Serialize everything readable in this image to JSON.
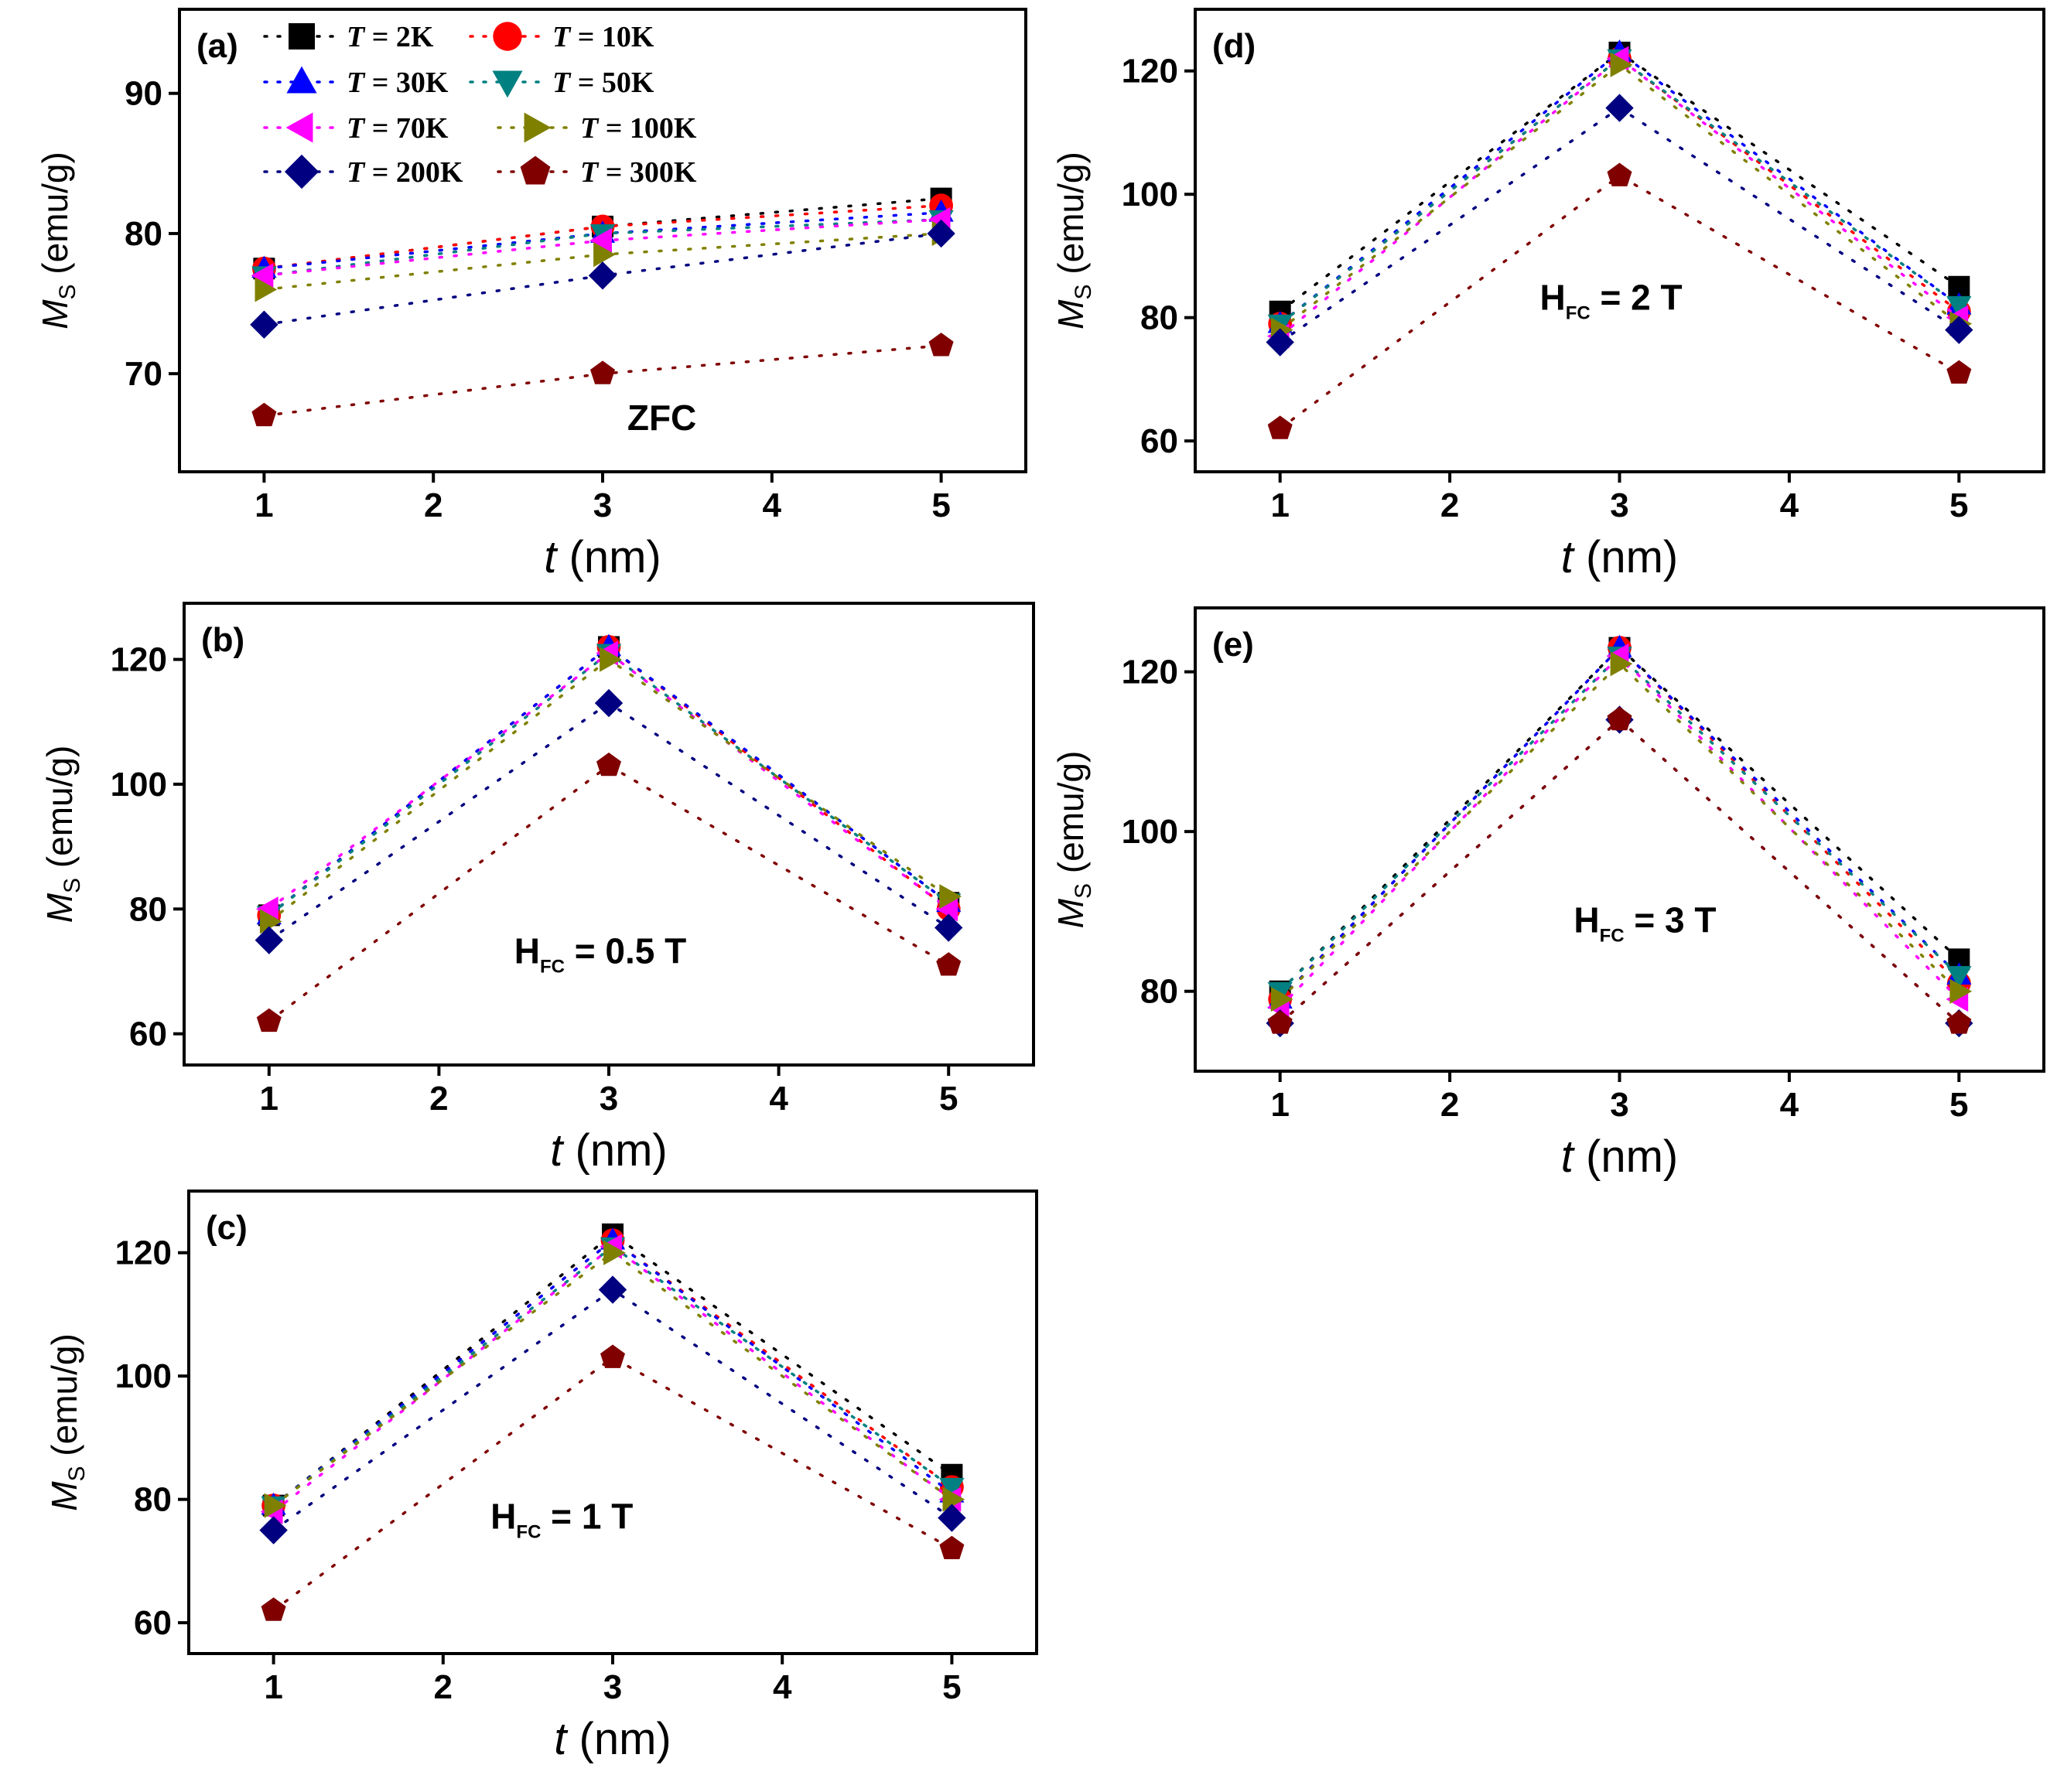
{
  "legend": [
    {
      "label_prefix": "T",
      "label_suffix": " = 2K",
      "marker": "square",
      "color": "#000000"
    },
    {
      "label_prefix": "T",
      "label_suffix": " = 10K",
      "marker": "circle",
      "color": "#ff0000"
    },
    {
      "label_prefix": "T",
      "label_suffix": " = 30K",
      "marker": "triangle-up",
      "color": "#0000ff"
    },
    {
      "label_prefix": "T",
      "label_suffix": " = 50K",
      "marker": "triangle-down",
      "color": "#008080"
    },
    {
      "label_prefix": "T",
      "label_suffix": " = 70K",
      "marker": "triangle-left",
      "color": "#ff00ff"
    },
    {
      "label_prefix": "T",
      "label_suffix": " = 100K",
      "marker": "triangle-right",
      "color": "#808000"
    },
    {
      "label_prefix": "T",
      "label_suffix": " = 200K",
      "marker": "diamond",
      "color": "#000080"
    },
    {
      "label_prefix": "T",
      "label_suffix": " = 300K",
      "marker": "pentagon",
      "color": "#800000"
    }
  ],
  "chart_data": [
    {
      "panel": "(a)",
      "type": "scatter",
      "annotation": {
        "main": "ZFC",
        "sub": "",
        "tail": ""
      },
      "xlabel": {
        "italic": "t",
        "rest": " (nm)"
      },
      "ylabel": {
        "italic": "M",
        "sub": "S",
        "rest": " (emu/g)"
      },
      "xlim": [
        0.5,
        5.5
      ],
      "ylim": [
        63,
        96
      ],
      "xticks": [
        1,
        2,
        3,
        4,
        5
      ],
      "yticks": [
        70,
        80,
        90
      ],
      "x": [
        1,
        3,
        5
      ],
      "series": [
        {
          "name": "T = 2K",
          "values": [
            77.5,
            80.5,
            82.5
          ]
        },
        {
          "name": "T = 10K",
          "values": [
            77.5,
            80.5,
            82
          ]
        },
        {
          "name": "T = 30K",
          "values": [
            77.5,
            80,
            81.5
          ]
        },
        {
          "name": "T = 50K",
          "values": [
            77,
            80,
            81
          ]
        },
        {
          "name": "T = 70K",
          "values": [
            77,
            79.5,
            81
          ]
        },
        {
          "name": "T = 100K",
          "values": [
            76,
            78.5,
            80
          ]
        },
        {
          "name": "T = 200K",
          "values": [
            73.5,
            77,
            80
          ]
        },
        {
          "name": "T = 300K",
          "values": [
            67,
            70,
            72
          ]
        }
      ]
    },
    {
      "panel": "(b)",
      "type": "scatter",
      "annotation": {
        "main": "H",
        "sub": "FC",
        "tail": " = 0.5 T"
      },
      "xlabel": {
        "italic": "t",
        "rest": " (nm)"
      },
      "ylabel": {
        "italic": "M",
        "sub": "S",
        "rest": " (emu/g)"
      },
      "xlim": [
        0.5,
        5.5
      ],
      "ylim": [
        55,
        129
      ],
      "xticks": [
        1,
        2,
        3,
        4,
        5
      ],
      "yticks": [
        60,
        80,
        100,
        120
      ],
      "x": [
        1,
        3,
        5
      ],
      "series": [
        {
          "name": "T = 2K",
          "values": [
            79,
            122,
            81
          ]
        },
        {
          "name": "T = 10K",
          "values": [
            79,
            122,
            80
          ]
        },
        {
          "name": "T = 30K",
          "values": [
            79,
            122,
            81
          ]
        },
        {
          "name": "T = 50K",
          "values": [
            79,
            121,
            81
          ]
        },
        {
          "name": "T = 70K",
          "values": [
            80,
            121,
            80
          ]
        },
        {
          "name": "T = 100K",
          "values": [
            78,
            120,
            82
          ]
        },
        {
          "name": "T = 200K",
          "values": [
            75,
            113,
            77
          ]
        },
        {
          "name": "T = 300K",
          "values": [
            62,
            103,
            71
          ]
        }
      ]
    },
    {
      "panel": "(c)",
      "type": "scatter",
      "annotation": {
        "main": "H",
        "sub": "FC",
        "tail": " = 1 T"
      },
      "xlabel": {
        "italic": "t",
        "rest": " (nm)"
      },
      "ylabel": {
        "italic": "M",
        "sub": "S",
        "rest": " (emu/g)"
      },
      "xlim": [
        0.5,
        5.5
      ],
      "ylim": [
        55,
        130
      ],
      "xticks": [
        1,
        2,
        3,
        4,
        5
      ],
      "yticks": [
        60,
        80,
        100,
        120
      ],
      "x": [
        1,
        3,
        5
      ],
      "series": [
        {
          "name": "T = 2K",
          "values": [
            79,
            123,
            84
          ]
        },
        {
          "name": "T = 10K",
          "values": [
            79,
            122,
            82
          ]
        },
        {
          "name": "T = 30K",
          "values": [
            79,
            122,
            81
          ]
        },
        {
          "name": "T = 50K",
          "values": [
            79,
            121,
            82
          ]
        },
        {
          "name": "T = 70K",
          "values": [
            78,
            121,
            80
          ]
        },
        {
          "name": "T = 100K",
          "values": [
            79,
            120,
            80
          ]
        },
        {
          "name": "T = 200K",
          "values": [
            75,
            114,
            77
          ]
        },
        {
          "name": "T = 300K",
          "values": [
            62,
            103,
            72
          ]
        }
      ]
    },
    {
      "panel": "(d)",
      "type": "scatter",
      "annotation": {
        "main": "H",
        "sub": "FC",
        "tail": " = 2 T"
      },
      "xlabel": {
        "italic": "t",
        "rest": " (nm)"
      },
      "ylabel": {
        "italic": "M",
        "sub": "S",
        "rest": " (emu/g)"
      },
      "xlim": [
        0.5,
        5.5
      ],
      "ylim": [
        55,
        130
      ],
      "xticks": [
        1,
        2,
        3,
        4,
        5
      ],
      "yticks": [
        60,
        80,
        100,
        120
      ],
      "x": [
        1,
        3,
        5
      ],
      "series": [
        {
          "name": "T = 2K",
          "values": [
            81,
            123,
            85
          ]
        },
        {
          "name": "T = 10K",
          "values": [
            79,
            122,
            81
          ]
        },
        {
          "name": "T = 30K",
          "values": [
            79,
            123,
            82
          ]
        },
        {
          "name": "T = 50K",
          "values": [
            79,
            122,
            82
          ]
        },
        {
          "name": "T = 70K",
          "values": [
            77,
            122,
            80
          ]
        },
        {
          "name": "T = 100K",
          "values": [
            78,
            121,
            79
          ]
        },
        {
          "name": "T = 200K",
          "values": [
            76,
            114,
            78
          ]
        },
        {
          "name": "T = 300K",
          "values": [
            62,
            103,
            71
          ]
        }
      ]
    },
    {
      "panel": "(e)",
      "type": "scatter",
      "annotation": {
        "main": "H",
        "sub": "FC",
        "tail": " = 3 T"
      },
      "xlabel": {
        "italic": "t",
        "rest": " (nm)"
      },
      "ylabel": {
        "italic": "M",
        "sub": "S",
        "rest": " (emu/g)"
      },
      "xlim": [
        0.5,
        5.5
      ],
      "ylim": [
        70,
        128
      ],
      "xticks": [
        1,
        2,
        3,
        4,
        5
      ],
      "yticks": [
        80,
        100,
        120
      ],
      "x": [
        1,
        3,
        5
      ],
      "series": [
        {
          "name": "T = 2K",
          "values": [
            80,
            123,
            84
          ]
        },
        {
          "name": "T = 10K",
          "values": [
            79,
            123,
            81
          ]
        },
        {
          "name": "T = 30K",
          "values": [
            79,
            123,
            82
          ]
        },
        {
          "name": "T = 50K",
          "values": [
            80,
            122,
            82
          ]
        },
        {
          "name": "T = 70K",
          "values": [
            78,
            122,
            79
          ]
        },
        {
          "name": "T = 100K",
          "values": [
            79,
            121,
            80
          ]
        },
        {
          "name": "T = 200K",
          "values": [
            76,
            114,
            76
          ]
        },
        {
          "name": "T = 300K",
          "values": [
            76,
            114,
            76
          ]
        }
      ]
    }
  ]
}
